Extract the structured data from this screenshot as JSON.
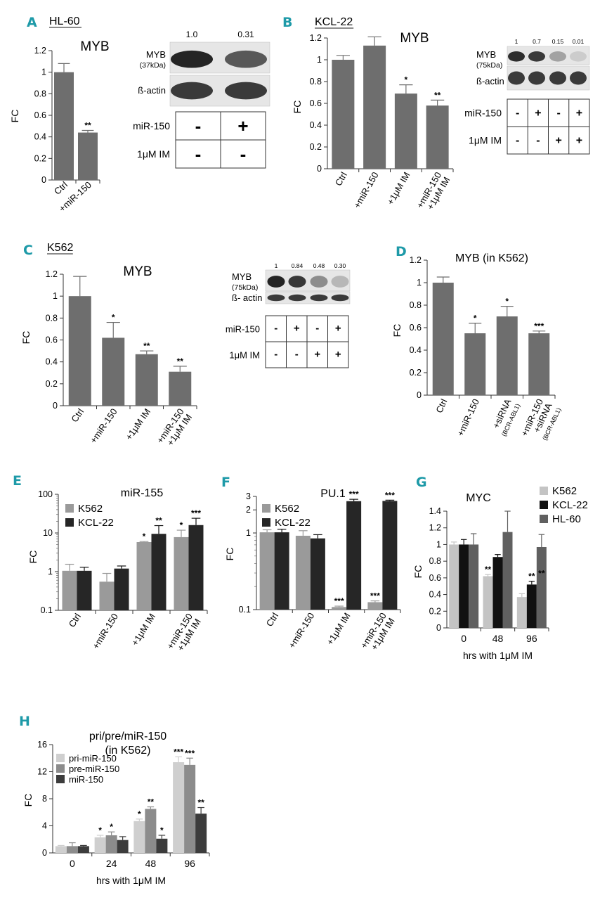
{
  "colors": {
    "letter": "#1e9aa8",
    "bar_gray": "#6e6e6e",
    "k562": "#9a9a9a",
    "kcl22": "#262626",
    "k562_g": "#c4c4c4",
    "kcl22_g": "#111111",
    "hl60_g": "#606060",
    "pri": "#cfcfcf",
    "pre": "#8c8c8c",
    "mir": "#3c3c3c"
  },
  "panels": [
    {
      "id": "A",
      "letter": "A",
      "cell_line": "HL-60",
      "blot": {
        "bands_label": [
          "1.0",
          "0.31"
        ],
        "rows": [
          "MYB",
          "(37kDa)",
          "ß-actin"
        ],
        "table": {
          "mir150": "miR-150",
          "im": "1μM IM",
          "mir_vals": [
            "-",
            "+"
          ],
          "im_vals": [
            "-",
            "-"
          ]
        }
      }
    },
    {
      "id": "B",
      "letter": "B",
      "cell_line": "KCL-22",
      "blot": {
        "bands_label": [
          "1",
          "0.7",
          "0.15",
          "0.01"
        ],
        "rows": [
          "MYB",
          "(75kDa)",
          "ß-actin"
        ],
        "table": {
          "mir150": "miR-150",
          "im": "1μM IM",
          "mir_vals": [
            "-",
            "+",
            "-",
            "+"
          ],
          "im_vals": [
            "-",
            "-",
            "+",
            "+"
          ]
        }
      }
    },
    {
      "id": "C",
      "letter": "C",
      "cell_line": "K562",
      "blot": {
        "bands_label": [
          "1",
          "0.84",
          "0.48",
          "0.30"
        ],
        "rows": [
          "MYB",
          "(75kDa)",
          "ß- actin"
        ],
        "table": {
          "mir150": "miR-150",
          "im": "1μM IM",
          "mir_vals": [
            "-",
            "+",
            "-",
            "+"
          ],
          "im_vals": [
            "-",
            "-",
            "+",
            "+"
          ]
        }
      }
    },
    {
      "id": "D",
      "letter": "D"
    },
    {
      "id": "E",
      "letter": "E"
    },
    {
      "id": "F",
      "letter": "F"
    },
    {
      "id": "G",
      "letter": "G"
    },
    {
      "id": "H",
      "letter": "H"
    }
  ],
  "chart_data": [
    {
      "id": "A",
      "type": "bar",
      "title": "MYB",
      "ylabel": "FC",
      "ylim": [
        0,
        1.2
      ],
      "yticks": [
        "0",
        "0.2",
        "0.4",
        "0.6",
        "0.8",
        "1",
        "1.2"
      ],
      "categories": [
        "Ctrl",
        "+miR-150"
      ],
      "series": [
        {
          "values": [
            1.0,
            0.44
          ],
          "errors": [
            0.08,
            0.02
          ],
          "sig": [
            "",
            "**"
          ]
        }
      ]
    },
    {
      "id": "B",
      "type": "bar",
      "title": "MYB",
      "ylabel": "FC",
      "ylim": [
        0,
        1.2
      ],
      "yticks": [
        "0",
        "0.2",
        "0.4",
        "0.6",
        "0.8",
        "1",
        "1.2"
      ],
      "categories": [
        "Ctrl",
        "+miR-150",
        "+1μM IM",
        "+miR-150\n+1μM IM"
      ],
      "series": [
        {
          "values": [
            1.0,
            1.13,
            0.69,
            0.58
          ],
          "errors": [
            0.04,
            0.08,
            0.08,
            0.05
          ],
          "sig": [
            "",
            "",
            "*",
            "**"
          ]
        }
      ]
    },
    {
      "id": "C",
      "type": "bar",
      "title": "MYB",
      "ylabel": "FC",
      "ylim": [
        0,
        1.2
      ],
      "yticks": [
        "0",
        "0.2",
        "0.4",
        "0.6",
        "0.8",
        "1",
        "1.2"
      ],
      "categories": [
        "Ctrl",
        "+miR-150",
        "+1μM IM",
        "+miR-150\n+1μM IM"
      ],
      "series": [
        {
          "values": [
            1.0,
            0.62,
            0.47,
            0.31
          ],
          "errors": [
            0.18,
            0.14,
            0.03,
            0.05
          ],
          "sig": [
            "",
            "*",
            "**",
            "**"
          ]
        }
      ]
    },
    {
      "id": "D",
      "type": "bar",
      "title": "MYB (in K562)",
      "ylabel": "FC",
      "ylim": [
        0,
        1.2
      ],
      "yticks": [
        "0",
        "0.2",
        "0.4",
        "0.6",
        "0.8",
        "1",
        "1.2"
      ],
      "categories": [
        "Ctrl",
        "+miR-150",
        "+siRNA\n(BCR-ABL1)",
        "+miR-150\n+siRNA\n(BCR-ABL1)"
      ],
      "series": [
        {
          "values": [
            1.0,
            0.55,
            0.7,
            0.55
          ],
          "errors": [
            0.05,
            0.09,
            0.09,
            0.02
          ],
          "sig": [
            "",
            "*",
            "*",
            "***"
          ]
        }
      ]
    },
    {
      "id": "E",
      "type": "bar",
      "title": "miR-155",
      "ylabel": "FC",
      "scale": "log",
      "ylim": [
        0.1,
        100
      ],
      "yticks": [
        "0.1",
        "1",
        "10",
        "100"
      ],
      "categories": [
        "Ctrl",
        "+miR-150",
        "+1μM IM",
        "+miR-150\n+1μM IM"
      ],
      "series": [
        {
          "name": "K562",
          "values": [
            1.05,
            0.55,
            5.8,
            7.8
          ],
          "errors": [
            0.5,
            0.35,
            0.2,
            4.0
          ],
          "sig": [
            "",
            "",
            "*",
            "*"
          ]
        },
        {
          "name": "KCL-22",
          "values": [
            1.05,
            1.2,
            9.5,
            16
          ],
          "errors": [
            0.25,
            0.2,
            6.0,
            8.0
          ],
          "sig": [
            "",
            "",
            "**",
            "***"
          ]
        }
      ],
      "legend": "top-left"
    },
    {
      "id": "F",
      "type": "bar",
      "title": "PU.1",
      "ylabel": "FC",
      "scale": "log",
      "ylim": [
        0.1,
        3
      ],
      "yticks": [
        "0.1",
        "1",
        "2",
        "3"
      ],
      "categories": [
        "Ctrl",
        "+miR-150",
        "+1μM IM",
        "+miR-150\n+1μM IM"
      ],
      "series": [
        {
          "name": "K562",
          "values": [
            1.02,
            0.92,
            0.108,
            0.125
          ],
          "errors": [
            0.08,
            0.15,
            0.003,
            0.005
          ],
          "sig": [
            "",
            "",
            "***",
            "***"
          ]
        },
        {
          "name": "KCL-22",
          "values": [
            1.02,
            0.85,
            2.6,
            2.62
          ],
          "errors": [
            0.1,
            0.1,
            0.15,
            0.06
          ],
          "sig": [
            "",
            "",
            "***",
            "***"
          ]
        }
      ],
      "legend": "top-left"
    },
    {
      "id": "G",
      "type": "bar",
      "title": "MYC",
      "ylabel": "FC",
      "xlabel": "hrs with 1μM IM",
      "ylim": [
        0,
        1.4
      ],
      "yticks": [
        "0",
        "0.2",
        "0.4",
        "0.6",
        "0.8",
        "1",
        "1.2",
        "1.4"
      ],
      "categories": [
        "0",
        "48",
        "96"
      ],
      "series": [
        {
          "name": "K562",
          "values": [
            1.0,
            0.62,
            0.37
          ],
          "errors": [
            0.03,
            0.02,
            0.04
          ],
          "sig": [
            "",
            "**",
            ""
          ]
        },
        {
          "name": "KCL-22",
          "values": [
            1.0,
            0.85,
            0.52
          ],
          "errors": [
            0.06,
            0.03,
            0.04
          ],
          "sig": [
            "",
            "",
            "**"
          ]
        },
        {
          "name": "HL-60",
          "values": [
            1.0,
            1.15,
            0.97
          ],
          "errors": [
            0.13,
            0.25,
            0.15
          ],
          "sig": [
            "",
            "",
            ""
          ]
        }
      ],
      "sig_group": [
        "",
        "",
        "**"
      ],
      "legend": "top-right"
    },
    {
      "id": "H",
      "type": "bar",
      "title": "pri/pre/miR-150",
      "subtitle": "(in K562)",
      "ylabel": "FC",
      "xlabel": "hrs with 1μM IM",
      "ylim": [
        0,
        16
      ],
      "yticks": [
        "0",
        "4",
        "8",
        "12",
        "16"
      ],
      "categories": [
        "0",
        "24",
        "48",
        "96"
      ],
      "series": [
        {
          "name": "pri-miR-150",
          "values": [
            1.0,
            2.3,
            4.7,
            13.4
          ],
          "errors": [
            0.1,
            0.3,
            0.3,
            0.8
          ],
          "sig": [
            "",
            "*",
            "*",
            "***"
          ]
        },
        {
          "name": "pre-miR-150",
          "values": [
            1.0,
            2.6,
            6.5,
            13.0
          ],
          "errors": [
            0.5,
            0.5,
            0.3,
            1.0
          ],
          "sig": [
            "",
            "*",
            "**",
            "***"
          ]
        },
        {
          "name": "miR-150",
          "values": [
            1.0,
            1.9,
            2.1,
            5.8
          ],
          "errors": [
            0.1,
            0.5,
            0.5,
            0.9
          ],
          "sig": [
            "",
            "",
            "*",
            "**"
          ]
        }
      ],
      "legend": "top-left"
    }
  ]
}
